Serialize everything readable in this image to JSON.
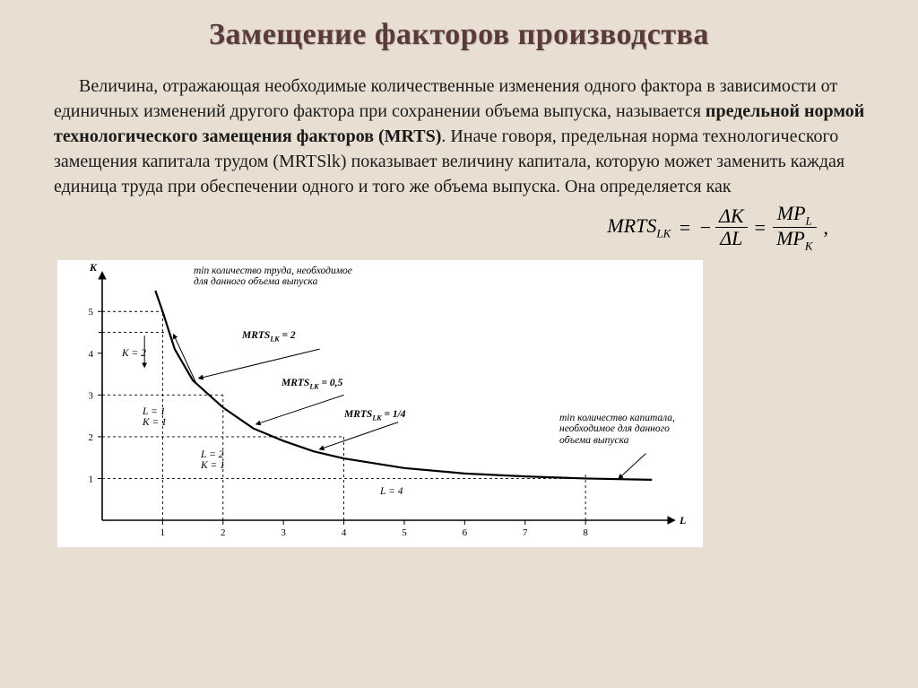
{
  "title": "Замещение факторов производства",
  "paragraph": {
    "pre": "Величина, отражающая необходимые количественные изменения одного фактора в зависимости от единичных изменений другого фактора  при сохранении объема выпуска, называется ",
    "bold": "предельной нормой технологического замещения факторов (MRTS)",
    "post": ". Иначе говоря, предельная норма технологического замещения капитала трудом (MRTSlk) показывает величину капитала, которую может заменить каждая единица труда при обеспечении одного и того же объема выпуска. Она определяется как"
  },
  "formula": {
    "lhs": "MRTS",
    "lhs_sub": "LK",
    "eq": "=",
    "minus": "−",
    "frac1_num": "ΔK",
    "frac1_den": "ΔL",
    "frac2_num": "MP",
    "frac2_num_sub": "L",
    "frac2_den": "MP",
    "frac2_den_sub": "K",
    "tail": ","
  },
  "chart": {
    "type": "line",
    "background_color": "#ffffff",
    "axis_color": "#000000",
    "grid_dash": "3,3",
    "curve_color": "#000000",
    "curve_width": 2.2,
    "x_label": "L",
    "y_label": "K",
    "xlim": [
      0,
      9.2
    ],
    "ylim": [
      0,
      5.8
    ],
    "x_ticks": [
      1,
      2,
      3,
      4,
      5,
      6,
      7,
      8
    ],
    "y_ticks": [
      1,
      2,
      3,
      4,
      5
    ],
    "label_fontsize": 12,
    "tick_fontsize": 11,
    "curve_points": [
      [
        0.88,
        5.5
      ],
      [
        1,
        5.0
      ],
      [
        1.2,
        4.1
      ],
      [
        1.5,
        3.35
      ],
      [
        2,
        2.7
      ],
      [
        2.5,
        2.2
      ],
      [
        3,
        1.9
      ],
      [
        3.5,
        1.65
      ],
      [
        4,
        1.48
      ],
      [
        5,
        1.25
      ],
      [
        6,
        1.12
      ],
      [
        7,
        1.05
      ],
      [
        8,
        1.0
      ],
      [
        9.1,
        0.97
      ]
    ],
    "dashed_guides": [
      {
        "from": [
          0,
          5
        ],
        "to": [
          1,
          5
        ]
      },
      {
        "from": [
          1,
          0
        ],
        "to": [
          1,
          5
        ]
      },
      {
        "from": [
          0,
          3
        ],
        "to": [
          2,
          3
        ]
      },
      {
        "from": [
          2,
          0
        ],
        "to": [
          2,
          3
        ]
      },
      {
        "from": [
          0,
          2
        ],
        "to": [
          4,
          2
        ]
      },
      {
        "from": [
          4,
          0
        ],
        "to": [
          4,
          2
        ]
      },
      {
        "from": [
          0,
          1
        ],
        "to": [
          8,
          1
        ]
      },
      {
        "from": [
          8,
          0
        ],
        "to": [
          8,
          1.1
        ]
      },
      {
        "from": [
          0,
          4.5
        ],
        "to": [
          1.06,
          4.5
        ]
      }
    ],
    "arrows": [
      {
        "from": [
          0.7,
          4.42
        ],
        "to": [
          0.7,
          3.67
        ],
        "double": false
      },
      {
        "from": [
          1.55,
          3.3
        ],
        "to": [
          1.18,
          4.45
        ],
        "double": false
      },
      {
        "from": [
          3.6,
          4.1
        ],
        "to": [
          1.6,
          3.4
        ],
        "double": false
      },
      {
        "from": [
          4.0,
          3.0
        ],
        "to": [
          2.55,
          2.3
        ],
        "double": false
      },
      {
        "from": [
          4.9,
          2.35
        ],
        "to": [
          3.6,
          1.7
        ],
        "double": false
      },
      {
        "from": [
          9.0,
          1.6
        ],
        "to": [
          8.55,
          1.0
        ],
        "double": false
      }
    ],
    "tick_marks": [
      {
        "axis": "y",
        "at": 4.5,
        "len": 4
      }
    ],
    "annotations": {
      "top_left": {
        "lines": [
          "min количество труда, необходимое",
          "для данного объема выпуска"
        ],
        "prefix_bold": "min"
      },
      "k2": "K = 2",
      "lk1": {
        "l": "L = 1",
        "k": "K = 1"
      },
      "lk2": {
        "l": "L = 2",
        "k": "K = 1"
      },
      "l4": "L = 4",
      "mrts2": "= 2",
      "mrts05": "= 0,5",
      "mrts14": "= 1/4",
      "mrts_label": "MRTS",
      "mrts_sub": "LK",
      "right": {
        "lines": [
          "min количество капитала,",
          "необходимое для данного",
          "объема выпуска"
        ],
        "prefix_bold": "min"
      }
    }
  }
}
